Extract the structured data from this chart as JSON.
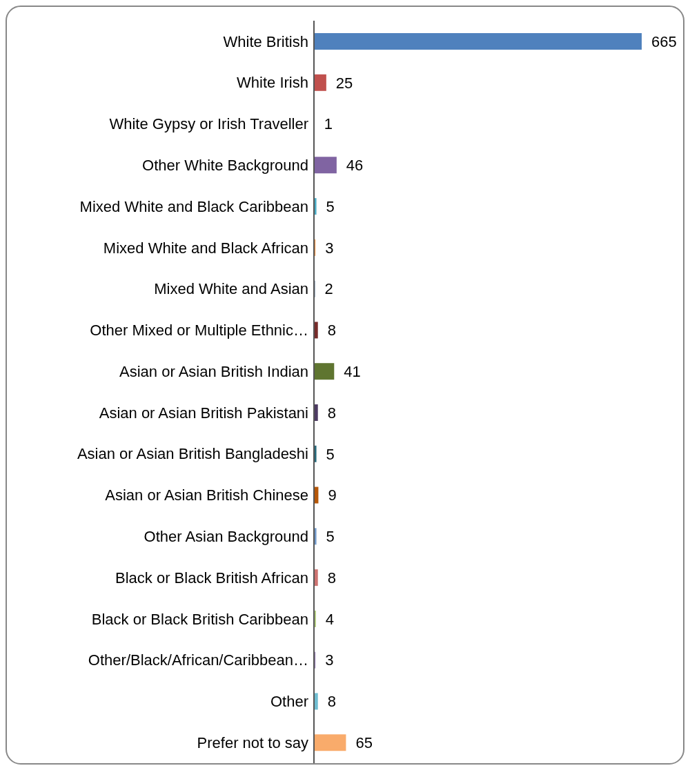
{
  "chart_data": {
    "type": "bar",
    "orientation": "horizontal",
    "data_labels": true,
    "grid": false,
    "legend": false,
    "categories": [
      "White British",
      "White Irish",
      "White Gypsy or Irish Traveller",
      "Other White Background",
      "Mixed White and Black Caribbean",
      "Mixed White and Black African",
      "Mixed White and Asian",
      "Other Mixed or Multiple Ethnic…",
      "Asian or Asian British Indian",
      "Asian or Asian British Pakistani",
      "Asian or Asian British Bangladeshi",
      "Asian or Asian British Chinese",
      "Other Asian Background",
      "Black or Black British African",
      "Black or Black British Caribbean",
      "Other/Black/African/Caribbean…",
      "Other",
      "Prefer not to say"
    ],
    "values": [
      665,
      25,
      1,
      46,
      5,
      3,
      2,
      8,
      41,
      8,
      5,
      9,
      5,
      8,
      4,
      3,
      8,
      65
    ],
    "colors": [
      "#4f81bd",
      "#c0504d",
      "#9bbb59",
      "#8064a2",
      "#4bacc6",
      "#f79646",
      "#2c4d75",
      "#772c2a",
      "#5f7530",
      "#4d3b62",
      "#276a7c",
      "#b65708",
      "#729aca",
      "#cd7371",
      "#afc97a",
      "#9983b5",
      "#6fbdd1",
      "#f9ab6b"
    ]
  }
}
